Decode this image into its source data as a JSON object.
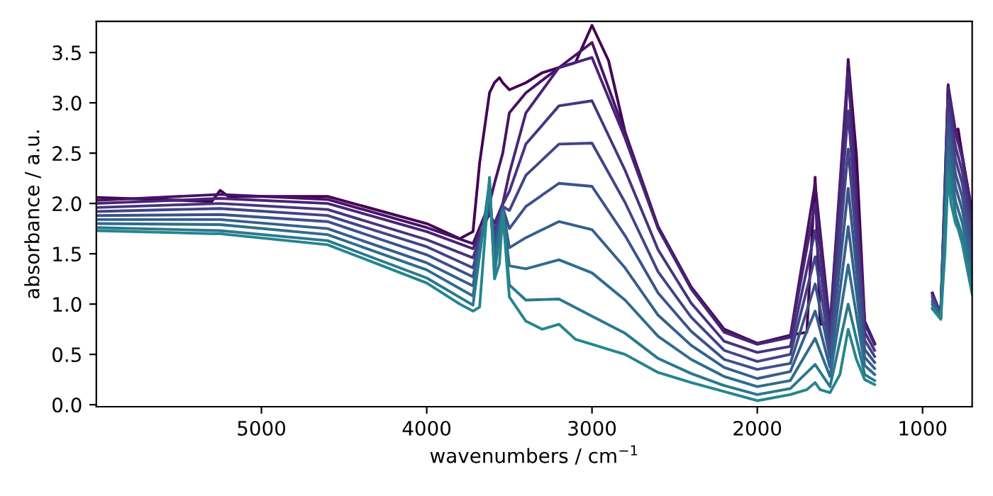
{
  "chart_data": {
    "type": "line",
    "xlabel": "wavenumbers / cm$^{−1}$",
    "ylabel": "absorbance / a.u.",
    "xlim": [
      5999,
      700
    ],
    "ylim": [
      -0.02,
      3.81
    ],
    "xticks": [
      5000,
      4000,
      3000,
      2000,
      1000
    ],
    "yticks": [
      {
        "value": 0,
        "label": "0.0"
      },
      0.5,
      {
        "value": 1,
        "label": "1.0"
      },
      1.5,
      {
        "value": 2,
        "label": "2.0"
      },
      2.5,
      {
        "value": 3,
        "label": "3.0"
      },
      3.5
    ],
    "grid": false,
    "legend": false,
    "marker": "none",
    "line_style": "solid",
    "series": [
      {
        "color": "#440154",
        "x": [
          5999,
          5300,
          5250,
          5200,
          4600,
          4000,
          3800,
          3720,
          3680,
          3620,
          3590,
          3560,
          3540,
          3500,
          3400,
          3300,
          3200,
          3100,
          3000,
          2900,
          2800,
          2600,
          2400,
          2200,
          2000,
          1800,
          1700,
          1650,
          1620,
          1560,
          1500,
          1450,
          1400,
          1350,
          1290,
          1100,
          940,
          915,
          890,
          865,
          845,
          828,
          800,
          785,
          760,
          700
        ],
        "values": [
          2.06,
          2.02,
          2.13,
          2.07,
          2.07,
          1.8,
          1.65,
          1.72,
          2.4,
          3.1,
          3.2,
          3.25,
          3.2,
          3.13,
          3.2,
          3.3,
          3.35,
          3.4,
          3.77,
          3.42,
          2.71,
          1.77,
          1.17,
          0.75,
          0.61,
          0.69,
          0.72,
          2.26,
          0.8,
          0.8,
          1.6,
          3.43,
          2.48,
          0.83,
          0.61,
          null,
          1.11,
          1.0,
          0.9,
          2.0,
          3.18,
          2.7,
          2.72,
          2.74,
          2.48,
          1.91
        ]
      },
      {
        "color": "#471365",
        "x": [
          5999,
          5250,
          4600,
          4000,
          3720,
          3620,
          3590,
          3540,
          3500,
          3400,
          3200,
          3000,
          2800,
          2600,
          2400,
          2200,
          2000,
          1800,
          1650,
          1560,
          1450,
          1350,
          1290,
          1100,
          940,
          890,
          845,
          800,
          760,
          700
        ],
        "values": [
          2.03,
          2.09,
          2.04,
          1.76,
          1.6,
          2.0,
          2.2,
          2.5,
          2.9,
          3.1,
          3.35,
          3.6,
          2.7,
          1.76,
          1.16,
          0.74,
          0.61,
          0.68,
          2.2,
          0.78,
          3.38,
          0.82,
          0.61,
          null,
          1.1,
          0.9,
          3.17,
          2.71,
          2.47,
          1.9
        ]
      },
      {
        "color": "#482475",
        "x": [
          5999,
          5250,
          4600,
          4000,
          3720,
          3620,
          3590,
          3540,
          3500,
          3400,
          3200,
          3000,
          2800,
          2600,
          2400,
          2200,
          2000,
          1800,
          1650,
          1560,
          1450,
          1350,
          1290,
          1100,
          940,
          890,
          845,
          800,
          760,
          700
        ],
        "values": [
          2.0,
          2.05,
          2.0,
          1.72,
          1.55,
          1.9,
          1.8,
          2.0,
          2.3,
          2.9,
          3.35,
          3.45,
          2.65,
          1.75,
          1.15,
          0.72,
          0.6,
          0.67,
          2.0,
          0.75,
          3.3,
          0.8,
          0.6,
          null,
          1.1,
          0.9,
          3.15,
          2.7,
          2.45,
          1.9
        ]
      },
      {
        "color": "#463480",
        "x": [
          5999,
          5250,
          4600,
          4000,
          3720,
          3620,
          3590,
          3540,
          3500,
          3400,
          3200,
          3000,
          2800,
          2600,
          2400,
          2200,
          2000,
          1800,
          1650,
          1560,
          1450,
          1350,
          1290,
          1100,
          940,
          890,
          845,
          800,
          760,
          700
        ],
        "values": [
          1.96,
          2.0,
          1.94,
          1.64,
          1.46,
          1.95,
          1.72,
          1.99,
          2.12,
          2.59,
          2.97,
          3.02,
          2.33,
          1.54,
          1.01,
          0.63,
          0.52,
          0.58,
          1.73,
          0.66,
          2.92,
          0.72,
          0.54,
          null,
          1.08,
          0.89,
          3.02,
          2.56,
          2.32,
          1.78
        ]
      },
      {
        "color": "#414487",
        "x": [
          5999,
          5250,
          4600,
          4000,
          3720,
          3620,
          3590,
          3540,
          3500,
          3400,
          3200,
          3000,
          2800,
          2600,
          2400,
          2200,
          2000,
          1800,
          1650,
          1560,
          1450,
          1350,
          1290,
          1100,
          940,
          890,
          845,
          800,
          760,
          700
        ],
        "values": [
          1.92,
          1.95,
          1.88,
          1.57,
          1.36,
          2.01,
          1.64,
          1.97,
          1.93,
          2.28,
          2.59,
          2.6,
          2.01,
          1.32,
          0.87,
          0.54,
          0.43,
          0.5,
          1.47,
          0.56,
          2.54,
          0.64,
          0.48,
          null,
          1.06,
          0.89,
          2.9,
          2.43,
          2.2,
          1.66
        ]
      },
      {
        "color": "#3b528b",
        "x": [
          5999,
          5250,
          4600,
          4000,
          3720,
          3620,
          3590,
          3540,
          3500,
          3400,
          3200,
          3000,
          2800,
          2600,
          2400,
          2200,
          2000,
          1800,
          1650,
          1560,
          1450,
          1350,
          1290,
          1100,
          940,
          890,
          845,
          800,
          760,
          700
        ],
        "values": [
          1.88,
          1.89,
          1.82,
          1.49,
          1.27,
          2.06,
          1.55,
          1.96,
          1.75,
          1.97,
          2.2,
          2.17,
          1.68,
          1.11,
          0.73,
          0.45,
          0.35,
          0.41,
          1.2,
          0.47,
          2.15,
          0.55,
          0.42,
          null,
          1.03,
          0.88,
          2.77,
          2.29,
          2.07,
          1.54
        ]
      },
      {
        "color": "#355f8d",
        "x": [
          5999,
          5250,
          4600,
          4000,
          3720,
          3620,
          3590,
          3540,
          3500,
          3400,
          3200,
          3000,
          2800,
          2600,
          2400,
          2200,
          2000,
          1800,
          1650,
          1560,
          1450,
          1350,
          1290,
          1100,
          940,
          890,
          845,
          800,
          760,
          700
        ],
        "values": [
          1.84,
          1.84,
          1.75,
          1.41,
          1.18,
          2.12,
          1.47,
          1.95,
          1.56,
          1.66,
          1.82,
          1.74,
          1.36,
          0.89,
          0.59,
          0.37,
          0.26,
          0.33,
          0.93,
          0.37,
          1.77,
          0.47,
          0.36,
          null,
          1.01,
          0.87,
          2.64,
          2.16,
          1.94,
          1.42
        ]
      },
      {
        "color": "#2f6c8e",
        "x": [
          5999,
          5250,
          4600,
          4000,
          3720,
          3620,
          3590,
          3540,
          3500,
          3400,
          3200,
          3000,
          2800,
          2600,
          2400,
          2200,
          2000,
          1800,
          1650,
          1560,
          1450,
          1350,
          1290,
          1100,
          940,
          890,
          845,
          800,
          760,
          700
        ],
        "values": [
          1.8,
          1.79,
          1.69,
          1.34,
          1.08,
          2.17,
          1.39,
          1.93,
          1.38,
          1.35,
          1.44,
          1.31,
          1.04,
          0.68,
          0.45,
          0.28,
          0.18,
          0.24,
          0.66,
          0.28,
          1.39,
          0.39,
          0.3,
          null,
          0.99,
          0.86,
          2.51,
          2.02,
          1.81,
          1.3
        ]
      },
      {
        "color": "#2a788e",
        "x": [
          5999,
          5250,
          4600,
          4000,
          3720,
          3620,
          3590,
          3540,
          3500,
          3400,
          3200,
          3000,
          2800,
          2600,
          2400,
          2200,
          2000,
          1800,
          1650,
          1560,
          1450,
          1350,
          1290,
          1100,
          940,
          890,
          845,
          800,
          760,
          700
        ],
        "values": [
          1.76,
          1.73,
          1.63,
          1.26,
          0.99,
          2.22,
          1.3,
          1.92,
          1.19,
          1.04,
          1.05,
          0.88,
          0.71,
          0.46,
          0.31,
          0.19,
          0.1,
          0.16,
          0.4,
          0.18,
          1.0,
          0.3,
          0.24,
          null,
          0.96,
          0.85,
          2.38,
          1.89,
          1.68,
          1.18
        ]
      },
      {
        "color": "#25858e",
        "x": [
          5999,
          5300,
          5250,
          5200,
          4600,
          4000,
          3800,
          3720,
          3680,
          3620,
          3590,
          3560,
          3540,
          3500,
          3400,
          3300,
          3200,
          3100,
          3000,
          2900,
          2800,
          2600,
          2400,
          2200,
          2000,
          1800,
          1700,
          1650,
          1620,
          1560,
          1500,
          1450,
          1400,
          1350,
          1290,
          1100,
          940,
          915,
          890,
          865,
          845,
          828,
          800,
          785,
          760,
          700
        ],
        "values": [
          1.73,
          1.7,
          1.7,
          1.69,
          1.59,
          1.21,
          1.0,
          0.93,
          0.97,
          2.26,
          1.25,
          1.4,
          1.91,
          1.07,
          0.83,
          0.75,
          0.8,
          0.65,
          0.6,
          0.55,
          0.5,
          0.32,
          0.22,
          0.13,
          0.04,
          0.1,
          0.15,
          0.22,
          0.15,
          0.12,
          0.3,
          0.75,
          0.45,
          0.25,
          0.2,
          null,
          0.95,
          0.9,
          0.85,
          1.5,
          2.3,
          2.0,
          1.8,
          1.75,
          1.6,
          1.1
        ]
      }
    ]
  }
}
